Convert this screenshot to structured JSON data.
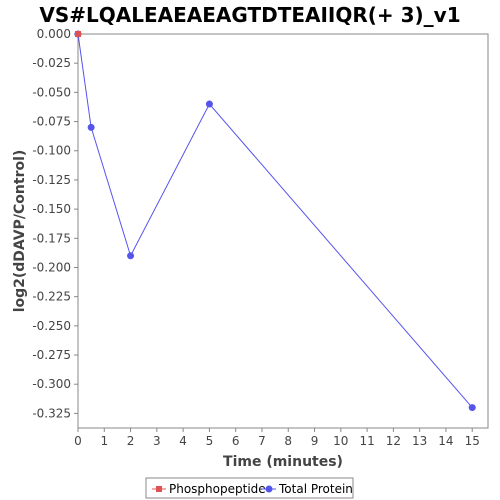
{
  "chart_data": {
    "type": "line",
    "title": "VS#LQALEAEAEAGTDTEAIIQR(+ 3)_v1",
    "xlabel": "Time (minutes)",
    "ylabel": "log2(dDAVP/Control)",
    "xlim": [
      0,
      15.6
    ],
    "ylim": [
      -0.3375,
      0.0
    ],
    "x_ticks": [
      0,
      1,
      2,
      3,
      4,
      5,
      6,
      7,
      8,
      9,
      10,
      11,
      12,
      13,
      14,
      15
    ],
    "y_ticks": [
      0.0,
      -0.025,
      -0.05,
      -0.075,
      -0.1,
      -0.125,
      -0.15,
      -0.175,
      -0.2,
      -0.225,
      -0.25,
      -0.275,
      -0.3,
      -0.325
    ],
    "y_tick_labels": [
      "0.000",
      "-0.025",
      "-0.050",
      "-0.075",
      "-0.100",
      "-0.125",
      "-0.150",
      "-0.175",
      "-0.200",
      "-0.225",
      "-0.250",
      "-0.275",
      "-0.300",
      "-0.325"
    ],
    "grid": false,
    "legend_position": "bottom",
    "series": [
      {
        "name": "Phosphopeptide",
        "color": "#e05252",
        "marker": "square",
        "points": [
          {
            "x": 0,
            "y": 0.0
          }
        ]
      },
      {
        "name": "Total Protein",
        "color": "#5555ee",
        "marker": "circle",
        "points": [
          {
            "x": 0,
            "y": 0.0
          },
          {
            "x": 0.5,
            "y": -0.08
          },
          {
            "x": 2,
            "y": -0.19
          },
          {
            "x": 5,
            "y": -0.06
          },
          {
            "x": 15,
            "y": -0.32
          }
        ]
      }
    ]
  }
}
